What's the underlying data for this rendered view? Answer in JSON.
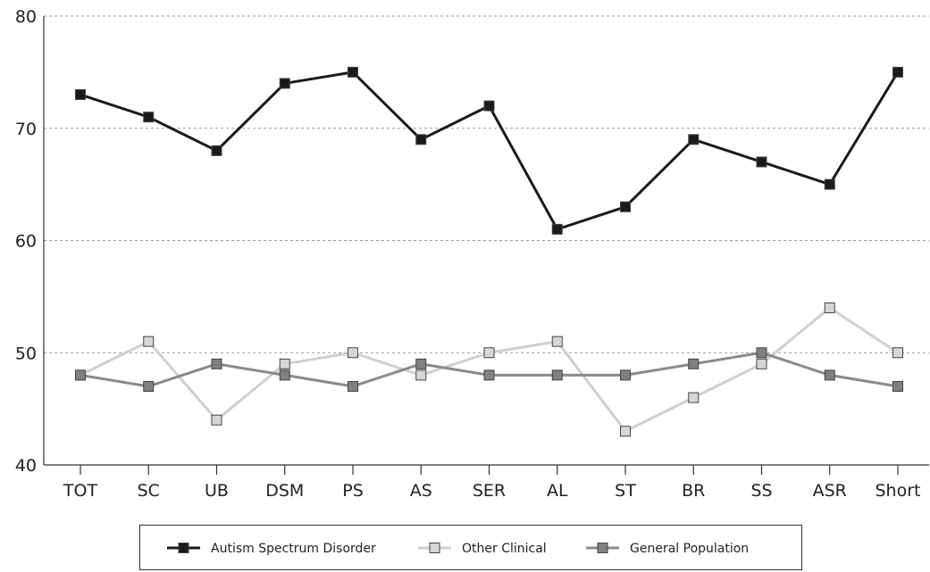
{
  "chart_data": {
    "type": "line",
    "categories": [
      "TOT",
      "SC",
      "UB",
      "DSM",
      "PS",
      "AS",
      "SER",
      "AL",
      "ST",
      "BR",
      "SS",
      "ASR",
      "Short"
    ],
    "ylim": [
      40,
      80
    ],
    "yticks": [
      40,
      50,
      60,
      70,
      80
    ],
    "grid": true,
    "legend_position": "bottom",
    "series": [
      {
        "name": "Autism Spectrum Disorder",
        "color": "#1a1a1a",
        "marker": "#1a1a1a",
        "values": [
          73,
          71,
          68,
          74,
          75,
          69,
          72,
          61,
          63,
          69,
          67,
          65,
          75
        ]
      },
      {
        "name": "Other Clinical",
        "color": "#cfcfcf",
        "marker": "#d6d6d6",
        "values": [
          48,
          51,
          44,
          49,
          50,
          48,
          50,
          51,
          43,
          46,
          49,
          54,
          50
        ]
      },
      {
        "name": "General Population",
        "color": "#8a8a8a",
        "marker": "#808080",
        "values": [
          48,
          47,
          49,
          48,
          47,
          49,
          48,
          48,
          48,
          49,
          50,
          48,
          47
        ]
      }
    ]
  }
}
